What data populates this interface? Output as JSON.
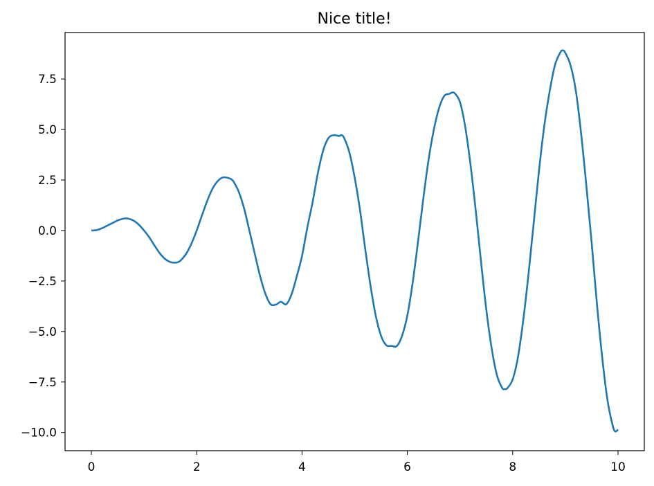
{
  "chart_data": {
    "type": "line",
    "title": "Nice title!",
    "xlabel": "",
    "ylabel": "",
    "xlim": [
      -0.5,
      10.5
    ],
    "ylim": [
      -10.9,
      9.8
    ],
    "x_ticks": [
      0,
      2,
      4,
      6,
      8,
      10
    ],
    "x_tick_labels": [
      "0",
      "2",
      "4",
      "6",
      "8",
      "10"
    ],
    "y_ticks": [
      -10.0,
      -7.5,
      -5.0,
      -2.5,
      0.0,
      2.5,
      5.0,
      7.5
    ],
    "y_tick_labels": [
      "−10.0",
      "−7.5",
      "−5.0",
      "−2.5",
      "0.0",
      "2.5",
      "5.0",
      "7.5"
    ],
    "grid": false,
    "series": [
      {
        "color": "#1f77b4",
        "x": [
          0.0,
          0.1,
          0.2,
          0.3,
          0.4,
          0.5,
          0.6,
          0.65,
          0.7,
          0.8,
          0.9,
          1.0,
          1.1,
          1.2,
          1.3,
          1.4,
          1.5,
          1.6,
          1.65,
          1.7,
          1.8,
          1.9,
          2.0,
          2.1,
          2.2,
          2.3,
          2.4,
          2.5,
          2.6,
          2.65,
          2.7,
          2.8,
          2.9,
          3.0,
          3.1,
          3.2,
          3.3,
          3.4,
          3.5,
          3.6,
          3.7,
          3.8,
          3.9,
          4.0,
          4.1,
          4.2,
          4.3,
          4.4,
          4.5,
          4.6,
          4.7,
          4.75,
          4.8,
          4.9,
          5.0,
          5.1,
          5.2,
          5.3,
          5.4,
          5.5,
          5.6,
          5.7,
          5.8,
          5.9,
          6.0,
          6.1,
          6.2,
          6.3,
          6.4,
          6.5,
          6.6,
          6.7,
          6.8,
          6.85,
          6.9,
          7.0,
          7.1,
          7.2,
          7.3,
          7.4,
          7.5,
          7.6,
          7.7,
          7.8,
          7.85,
          7.9,
          8.0,
          8.1,
          8.2,
          8.3,
          8.4,
          8.5,
          8.6,
          8.7,
          8.8,
          8.9,
          8.95,
          9.0,
          9.1,
          9.2,
          9.3,
          9.4,
          9.5,
          9.6,
          9.7,
          9.8,
          9.9,
          9.95,
          10.0
        ],
        "y": [
          0.0,
          0.02,
          0.11,
          0.24,
          0.37,
          0.5,
          0.58,
          0.6,
          0.59,
          0.49,
          0.29,
          0.0,
          -0.34,
          -0.75,
          -1.13,
          -1.41,
          -1.56,
          -1.59,
          -1.56,
          -1.47,
          -1.15,
          -0.65,
          0.0,
          0.75,
          1.47,
          2.07,
          2.45,
          2.63,
          2.6,
          2.55,
          2.42,
          1.91,
          1.09,
          0.0,
          -1.12,
          -2.22,
          -3.1,
          -3.64,
          -3.67,
          -3.53,
          -3.65,
          -3.17,
          -2.27,
          -1.26,
          0.14,
          1.39,
          2.83,
          3.95,
          4.57,
          4.72,
          4.68,
          4.72,
          4.58,
          3.86,
          2.62,
          1.03,
          -0.91,
          -2.72,
          -4.22,
          -5.21,
          -5.68,
          -5.71,
          -5.72,
          -5.21,
          -4.21,
          -2.61,
          -0.61,
          1.51,
          3.45,
          4.95,
          6.04,
          6.66,
          6.77,
          6.83,
          6.79,
          6.35,
          5.12,
          3.25,
          0.96,
          -1.56,
          -3.93,
          -5.81,
          -7.15,
          -7.79,
          -7.85,
          -7.8,
          -7.37,
          -6.28,
          -4.46,
          -2.18,
          0.39,
          2.96,
          5.17,
          6.85,
          8.16,
          8.79,
          8.92,
          8.79,
          8.17,
          6.91,
          4.8,
          2.2,
          -0.6,
          -3.62,
          -6.27,
          -8.39,
          -9.66,
          -9.95,
          -9.85
        ]
      }
    ]
  }
}
